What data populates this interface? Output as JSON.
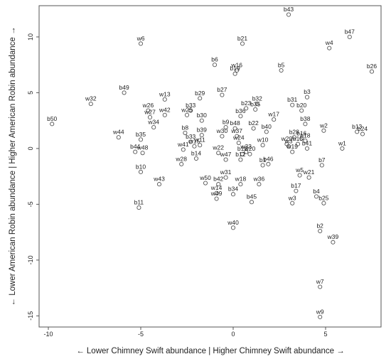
{
  "chart_data": {
    "type": "scatter",
    "xlabel": "← Lower Chimney Swift abundance | Higher Chimney Swift abundance →",
    "ylabel": "← Lower American Robin abundance | Higher American Robin abundance →",
    "xlim": [
      -10.5,
      8
    ],
    "ylim": [
      -16,
      12.8
    ],
    "x_ticks": [
      -10,
      -5,
      0,
      5
    ],
    "y_ticks": [
      -15,
      -10,
      -5,
      0,
      5,
      10
    ],
    "grid": false,
    "marker": "open-circle",
    "colors": {
      "marker": "#555555",
      "text": "#222222",
      "frame": "#555555"
    },
    "points": [
      {
        "label": "b43",
        "x": 3.0,
        "y": 12.0
      },
      {
        "label": "b47",
        "x": 6.3,
        "y": 10.0
      },
      {
        "label": "b21",
        "x": 0.5,
        "y": 9.4
      },
      {
        "label": "w6",
        "x": -5.0,
        "y": 9.4
      },
      {
        "label": "w4",
        "x": 5.2,
        "y": 9.0
      },
      {
        "label": "b26",
        "x": 7.5,
        "y": 6.9
      },
      {
        "label": "b6",
        "x": -1.0,
        "y": 7.5
      },
      {
        "label": "w16",
        "x": 0.2,
        "y": 7.0
      },
      {
        "label": "b19",
        "x": 0.1,
        "y": 6.7
      },
      {
        "label": "b5",
        "x": 2.6,
        "y": 7.0
      },
      {
        "label": "b49",
        "x": -5.9,
        "y": 5.0
      },
      {
        "label": "b27",
        "x": -0.6,
        "y": 4.8
      },
      {
        "label": "b29",
        "x": -1.8,
        "y": 4.5
      },
      {
        "label": "w13",
        "x": -3.7,
        "y": 4.4
      },
      {
        "label": "b3",
        "x": 4.0,
        "y": 4.6
      },
      {
        "label": "w32",
        "x": -7.7,
        "y": 4.0
      },
      {
        "label": "b32",
        "x": 1.3,
        "y": 4.0
      },
      {
        "label": "b23",
        "x": 0.7,
        "y": 3.6
      },
      {
        "label": "b31",
        "x": 3.2,
        "y": 3.9
      },
      {
        "label": "b35",
        "x": 1.2,
        "y": 3.5
      },
      {
        "label": "b20",
        "x": 3.7,
        "y": 3.4
      },
      {
        "label": "w26",
        "x": -4.6,
        "y": 3.4
      },
      {
        "label": "b33",
        "x": -2.3,
        "y": 3.4
      },
      {
        "label": "b36",
        "x": 0.4,
        "y": 2.9
      },
      {
        "label": "w42",
        "x": -3.7,
        "y": 3.0
      },
      {
        "label": "w27",
        "x": -4.5,
        "y": 2.8
      },
      {
        "label": "w25",
        "x": -2.5,
        "y": 3.0
      },
      {
        "label": "w17",
        "x": 2.2,
        "y": 2.6
      },
      {
        "label": "b30",
        "x": -1.7,
        "y": 2.5
      },
      {
        "label": "b38",
        "x": 3.9,
        "y": 2.2
      },
      {
        "label": "b50",
        "x": -9.8,
        "y": 2.2
      },
      {
        "label": "w34",
        "x": -4.3,
        "y": 1.9
      },
      {
        "label": "b22",
        "x": 1.1,
        "y": 1.8
      },
      {
        "label": "b9",
        "x": -0.4,
        "y": 1.9
      },
      {
        "label": "b48",
        "x": 0.1,
        "y": 1.8
      },
      {
        "label": "b40",
        "x": 1.8,
        "y": 1.5
      },
      {
        "label": "w2",
        "x": 4.9,
        "y": 1.6
      },
      {
        "label": "b13",
        "x": 6.7,
        "y": 1.5
      },
      {
        "label": "b24",
        "x": 7.0,
        "y": 1.3
      },
      {
        "label": "b8",
        "x": -2.6,
        "y": 1.4
      },
      {
        "label": "w37",
        "x": 0.2,
        "y": 1.1
      },
      {
        "label": "b39",
        "x": -1.7,
        "y": 1.2
      },
      {
        "label": "w30",
        "x": -0.6,
        "y": 1.1
      },
      {
        "label": "b28",
        "x": 3.3,
        "y": 1.0
      },
      {
        "label": "w44",
        "x": -6.2,
        "y": 1.0
      },
      {
        "label": "b35b",
        "x": -5.0,
        "y": 0.8
      },
      {
        "label": "b16",
        "x": 3.7,
        "y": 0.9
      },
      {
        "label": "b18",
        "x": 3.9,
        "y": 0.7
      },
      {
        "label": "b33b",
        "x": -2.3,
        "y": 0.6
      },
      {
        "label": "w24",
        "x": 0.3,
        "y": 0.5
      },
      {
        "label": "w29",
        "x": 2.9,
        "y": 0.4
      },
      {
        "label": "w10",
        "x": 1.6,
        "y": 0.3
      },
      {
        "label": "b15",
        "x": 3.5,
        "y": 0.4
      },
      {
        "label": "w1",
        "x": 5.9,
        "y": 0.0
      },
      {
        "label": "b41",
        "x": 4.0,
        "y": 0.0
      },
      {
        "label": "w3",
        "x": 3.0,
        "y": 0.2
      },
      {
        "label": "w11",
        "x": -1.8,
        "y": 0.3
      },
      {
        "label": "w15",
        "x": -2.1,
        "y": 0.2
      },
      {
        "label": "w41",
        "x": -2.7,
        "y": -0.1
      },
      {
        "label": "b44",
        "x": -5.3,
        "y": -0.3
      },
      {
        "label": "w48",
        "x": -4.9,
        "y": -0.4
      },
      {
        "label": "b12",
        "x": 0.5,
        "y": -0.5
      },
      {
        "label": "w33",
        "x": 0.7,
        "y": -0.3
      },
      {
        "label": "w20",
        "x": 0.9,
        "y": -0.5
      },
      {
        "label": "w22",
        "x": -0.8,
        "y": -0.4
      },
      {
        "label": "w19",
        "x": 3.2,
        "y": -0.3
      },
      {
        "label": "b14",
        "x": -2.0,
        "y": -0.9
      },
      {
        "label": "w47",
        "x": -0.4,
        "y": -1.0
      },
      {
        "label": "b12b",
        "x": 0.4,
        "y": -1.0
      },
      {
        "label": "w28",
        "x": -2.8,
        "y": -1.4
      },
      {
        "label": "b46",
        "x": 1.9,
        "y": -1.4
      },
      {
        "label": "b1",
        "x": 1.6,
        "y": -1.5
      },
      {
        "label": "b7",
        "x": 4.8,
        "y": -1.5
      },
      {
        "label": "w31",
        "x": -0.4,
        "y": -2.6
      },
      {
        "label": "w5",
        "x": 3.6,
        "y": -2.4
      },
      {
        "label": "w21",
        "x": 4.1,
        "y": -2.6
      },
      {
        "label": "b10",
        "x": -5.0,
        "y": -2.1
      },
      {
        "label": "w50",
        "x": -1.5,
        "y": -3.1
      },
      {
        "label": "b42",
        "x": -0.8,
        "y": -3.2
      },
      {
        "label": "w18",
        "x": 0.4,
        "y": -3.2
      },
      {
        "label": "w36",
        "x": 1.4,
        "y": -3.2
      },
      {
        "label": "w43",
        "x": -4.0,
        "y": -3.2
      },
      {
        "label": "b17",
        "x": 3.4,
        "y": -3.8
      },
      {
        "label": "w14",
        "x": -0.9,
        "y": -4.0
      },
      {
        "label": "b34",
        "x": 0.0,
        "y": -4.1
      },
      {
        "label": "b4",
        "x": 4.5,
        "y": -4.3
      },
      {
        "label": "w49",
        "x": -0.9,
        "y": -4.5
      },
      {
        "label": "b25",
        "x": 4.9,
        "y": -4.9
      },
      {
        "label": "b45",
        "x": 1.0,
        "y": -4.8
      },
      {
        "label": "w3b",
        "x": 3.2,
        "y": -4.9
      },
      {
        "label": "b11",
        "x": -5.1,
        "y": -5.3
      },
      {
        "label": "w40",
        "x": 0.0,
        "y": -7.1
      },
      {
        "label": "b2",
        "x": 4.7,
        "y": -7.4
      },
      {
        "label": "w39",
        "x": 5.4,
        "y": -8.4
      },
      {
        "label": "w7",
        "x": 4.7,
        "y": -12.4
      },
      {
        "label": "w9",
        "x": 4.7,
        "y": -15.1
      }
    ]
  }
}
